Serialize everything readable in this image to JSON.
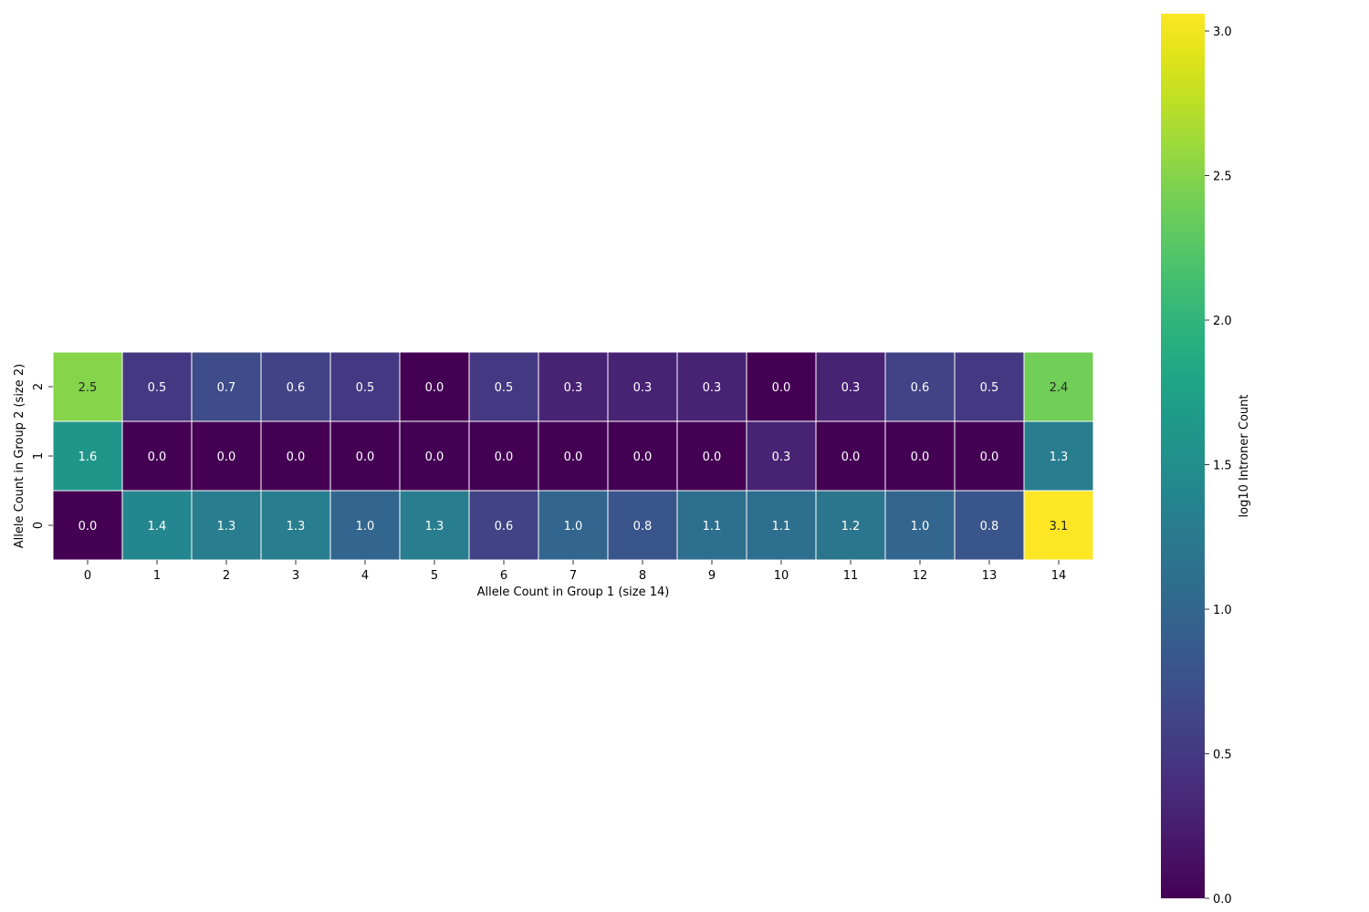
{
  "chart_data": {
    "type": "heatmap",
    "title": "",
    "xlabel": "Allele Count in Group 1 (size 14)",
    "ylabel": "Allele Count in Group 2 (size 2)",
    "x_categories": [
      "0",
      "1",
      "2",
      "3",
      "4",
      "5",
      "6",
      "7",
      "8",
      "9",
      "10",
      "11",
      "12",
      "13",
      "14"
    ],
    "y_categories": [
      "2",
      "1",
      "0"
    ],
    "values": [
      [
        2.5,
        0.5,
        0.7,
        0.6,
        0.5,
        0.0,
        0.5,
        0.3,
        0.3,
        0.3,
        0.0,
        0.3,
        0.6,
        0.5,
        2.4
      ],
      [
        1.6,
        0.0,
        0.0,
        0.0,
        0.0,
        0.0,
        0.0,
        0.0,
        0.0,
        0.0,
        0.3,
        0.0,
        0.0,
        0.0,
        1.3
      ],
      [
        0.0,
        1.4,
        1.3,
        1.3,
        1.0,
        1.3,
        0.6,
        1.0,
        0.8,
        1.1,
        1.1,
        1.2,
        1.0,
        0.8,
        3.1
      ]
    ],
    "colormap": "viridis",
    "colorbar": {
      "label": "log10 Introner Count",
      "range": [
        0,
        3.06
      ],
      "ticks": [
        "0.0",
        "0.5",
        "1.0",
        "1.5",
        "2.0",
        "2.5",
        "3.0"
      ]
    },
    "grid": false,
    "cell_border_color": "#ffffff"
  }
}
